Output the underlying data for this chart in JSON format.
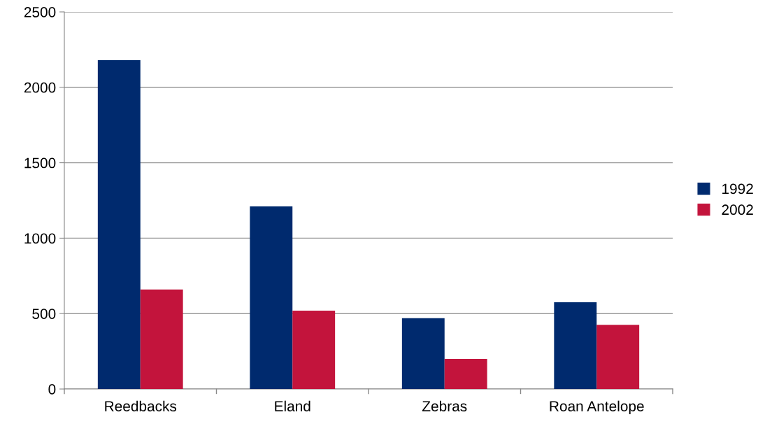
{
  "chart_data": {
    "type": "bar",
    "categories": [
      "Reedbacks",
      "Eland",
      "Zebras",
      "Roan Antelope"
    ],
    "series": [
      {
        "name": "1992",
        "color": "#002a6e",
        "values": [
          2180,
          1210,
          470,
          575
        ]
      },
      {
        "name": "2002",
        "color": "#c3143c",
        "values": [
          660,
          520,
          200,
          425
        ]
      }
    ],
    "ylim": [
      0,
      2500
    ],
    "yticks": [
      0,
      500,
      1000,
      1500,
      2000,
      2500
    ],
    "grid": "y",
    "legend": "right"
  }
}
